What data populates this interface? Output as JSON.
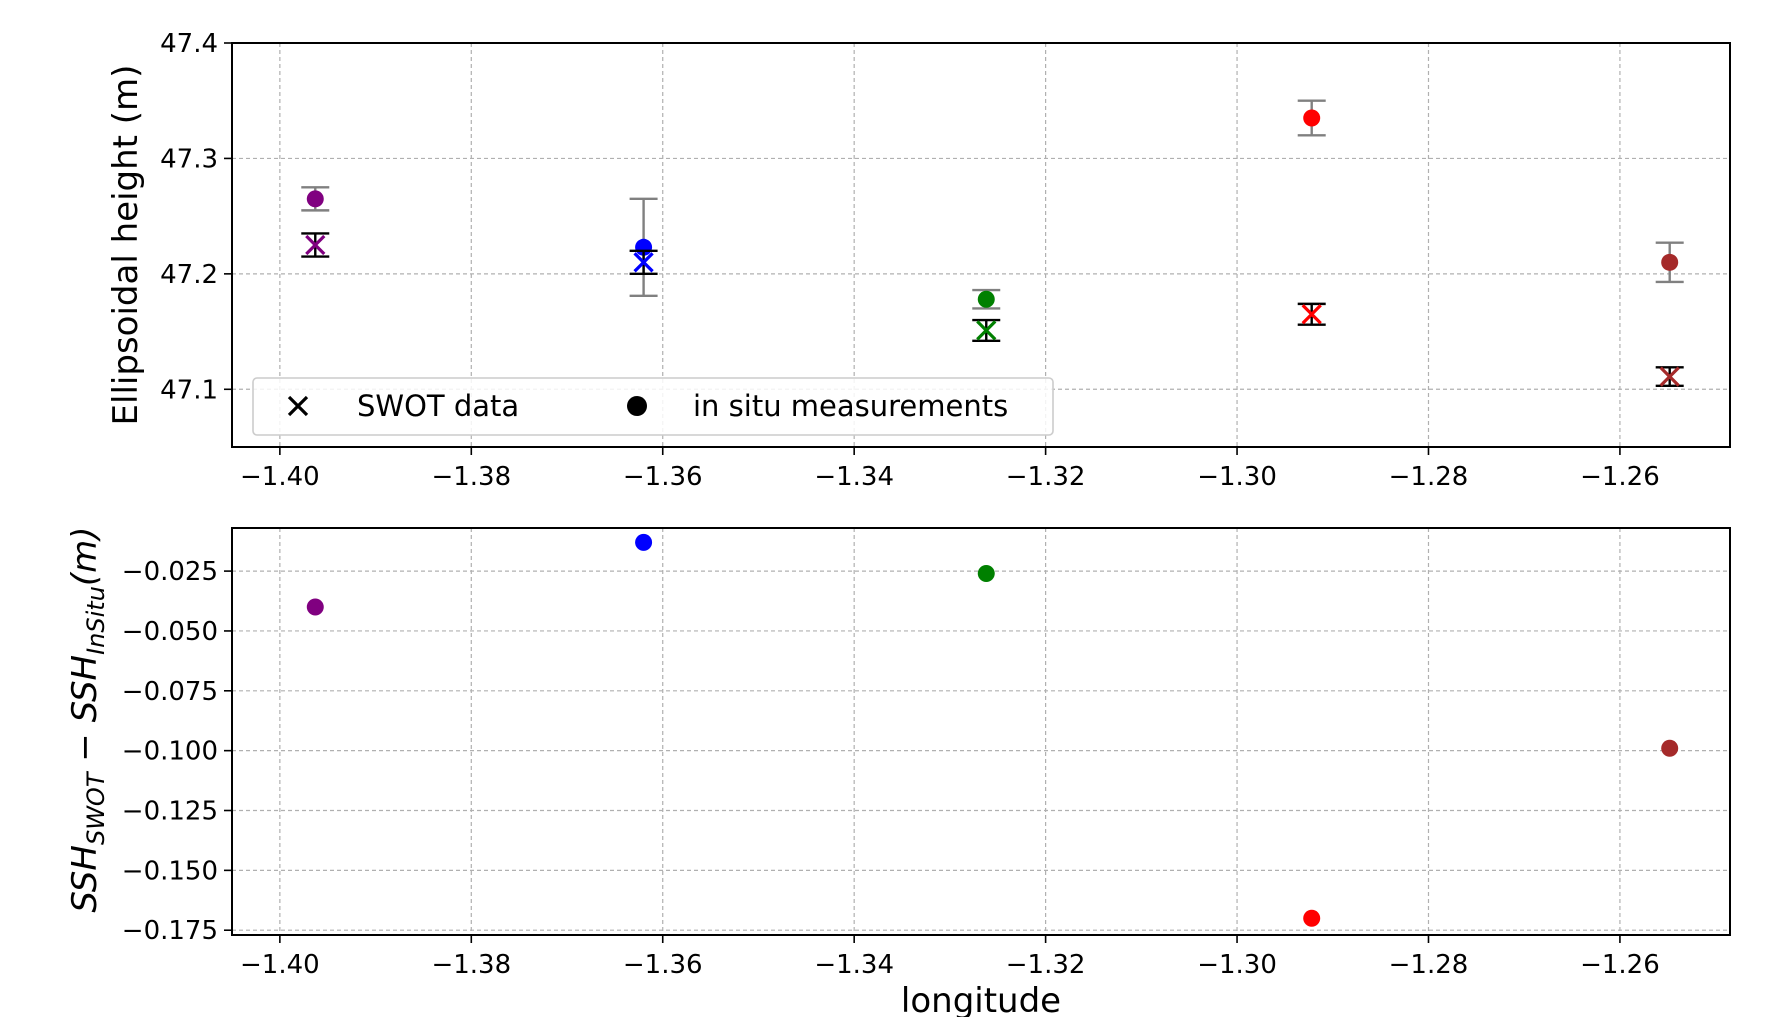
{
  "chart_data": [
    {
      "type": "scatter",
      "panel": "top",
      "xlabel": "",
      "ylabel": "Ellipsoidal height (m)",
      "xlim": [
        -1.405,
        -1.2485
      ],
      "ylim": [
        47.05,
        47.4
      ],
      "xticks": [
        -1.4,
        -1.38,
        -1.36,
        -1.34,
        -1.32,
        -1.3,
        -1.28,
        -1.26
      ],
      "xtick_labels": [
        "−1.40",
        "−1.38",
        "−1.36",
        "−1.34",
        "−1.32",
        "−1.30",
        "−1.28",
        "−1.26"
      ],
      "yticks": [
        47.1,
        47.2,
        47.3,
        47.4
      ],
      "ytick_labels": [
        "47.1",
        "47.2",
        "47.3",
        "47.4"
      ],
      "grid": true,
      "legend": {
        "placement": "lower-left",
        "entries": [
          {
            "label": "SWOT data",
            "marker": "x"
          },
          {
            "label": "in situ measurements",
            "marker": "o"
          }
        ]
      },
      "points": [
        {
          "x": -1.3963,
          "color": "#800080",
          "swot": 47.225,
          "swot_err": 0.01,
          "insitu": 47.265,
          "insitu_err": 0.01
        },
        {
          "x": -1.362,
          "color": "#0000ff",
          "swot": 47.21,
          "swot_err": 0.01,
          "insitu": 47.223,
          "insitu_err": 0.042
        },
        {
          "x": -1.3262,
          "color": "#008000",
          "swot": 47.151,
          "swot_err": 0.009,
          "insitu": 47.178,
          "insitu_err": 0.008
        },
        {
          "x": -1.2922,
          "color": "#ff0000",
          "swot": 47.165,
          "swot_err": 0.009,
          "insitu": 47.335,
          "insitu_err": 0.015
        },
        {
          "x": -1.2548,
          "color": "#a52a2a",
          "swot": 47.111,
          "swot_err": 0.008,
          "insitu": 47.21,
          "insitu_err": 0.017
        }
      ]
    },
    {
      "type": "scatter",
      "panel": "bottom",
      "xlabel": "longitude",
      "ylabel": "SSH_SWOT − SSH_InSitu (m)",
      "ylabel_parts": {
        "main": "SSH",
        "sub1": "SWOT",
        "mid": " − SSH",
        "sub2": "InSitu",
        "end": "(m)"
      },
      "xlim": [
        -1.405,
        -1.2485
      ],
      "ylim": [
        -0.177,
        -0.007
      ],
      "xticks": [
        -1.4,
        -1.38,
        -1.36,
        -1.34,
        -1.32,
        -1.3,
        -1.28,
        -1.26
      ],
      "xtick_labels": [
        "−1.40",
        "−1.38",
        "−1.36",
        "−1.34",
        "−1.32",
        "−1.30",
        "−1.28",
        "−1.26"
      ],
      "yticks": [
        -0.025,
        -0.05,
        -0.075,
        -0.1,
        -0.125,
        -0.15,
        -0.175
      ],
      "ytick_labels": [
        "−0.025",
        "−0.050",
        "−0.075",
        "−0.100",
        "−0.125",
        "−0.150",
        "−0.175"
      ],
      "grid": true,
      "points": [
        {
          "x": -1.3963,
          "y": -0.04,
          "color": "#800080"
        },
        {
          "x": -1.362,
          "y": -0.013,
          "color": "#0000ff"
        },
        {
          "x": -1.3262,
          "y": -0.026,
          "color": "#008000"
        },
        {
          "x": -1.2922,
          "y": -0.17,
          "color": "#ff0000"
        },
        {
          "x": -1.2548,
          "y": -0.099,
          "color": "#a52a2a"
        }
      ]
    }
  ],
  "colors": {
    "grid": "#b0b0b0",
    "errorbar_insitu": "#808080",
    "errorbar_swot": "#000000",
    "axes": "#000000"
  }
}
